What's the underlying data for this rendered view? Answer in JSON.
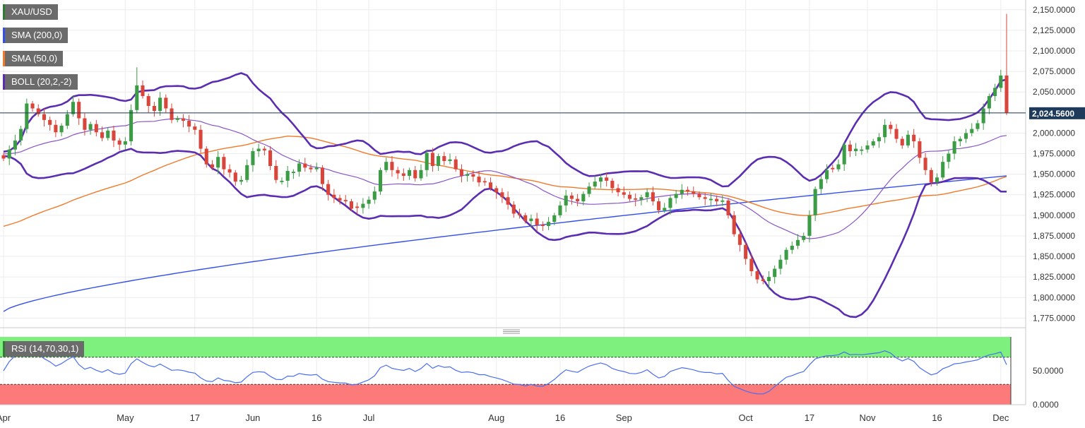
{
  "legend": {
    "symbol": "XAU/USD",
    "sma200": "SMA (200,0)",
    "sma50": "SMA (50,0)",
    "boll": "BOLL (20,2,-2)",
    "rsi": "RSI (14,70,30,1)"
  },
  "colors": {
    "up": "#3c9c46",
    "down": "#d9453a",
    "sma200": "#3550e8",
    "sma50": "#ef7a2a",
    "boll_band": "#5b2db0",
    "boll_mid": "#8a55c8",
    "rsi_line": "#4a6ef0",
    "rsi_over": "#7ef07e",
    "rsi_under": "#fc7a7a",
    "last_price_bg": "#1f3b5c",
    "legend_symbol": "#2e7d32",
    "legend_sma200": "#3550e8",
    "legend_sma50": "#ef7a2a",
    "legend_boll": "#5b2db0",
    "legend_rsi": "#2e7d32"
  },
  "last_price": "2,024.5600",
  "chart_data": [
    {
      "type": "candlestick",
      "series_name": "XAU/USD",
      "x_ticks": [
        {
          "label": "Apr",
          "i": 0
        },
        {
          "label": "May",
          "i": 21
        },
        {
          "label": "17",
          "i": 33
        },
        {
          "label": "Jun",
          "i": 43
        },
        {
          "label": "16",
          "i": 54
        },
        {
          "label": "Jul",
          "i": 63
        },
        {
          "label": "Aug",
          "i": 85
        },
        {
          "label": "16",
          "i": 96
        },
        {
          "label": "Sep",
          "i": 107
        },
        {
          "label": "Oct",
          "i": 128
        },
        {
          "label": "17",
          "i": 139
        },
        {
          "label": "Nov",
          "i": 149
        },
        {
          "label": "16",
          "i": 161
        },
        {
          "label": "Dec",
          "i": 172
        }
      ],
      "y_ticks": [
        "2,150.0000",
        "2,125.0000",
        "2,100.0000",
        "2,075.0000",
        "2,050.0000",
        "2,025.0000",
        "2,000.0000",
        "1,975.0000",
        "1,950.0000",
        "1,925.0000",
        "1,900.0000",
        "1,875.0000",
        "1,850.0000",
        "1,825.0000",
        "1,800.0000",
        "1,775.0000"
      ],
      "ylim": [
        1765,
        2155
      ],
      "close": [
        1969,
        1980,
        1991,
        2005,
        2036,
        2030,
        2023,
        2016,
        2010,
        2001,
        2009,
        2023,
        2038,
        2018,
        2004,
        2011,
        2001,
        1994,
        2003,
        1991,
        1986,
        1990,
        2028,
        2058,
        2045,
        2033,
        2027,
        2043,
        2030,
        2016,
        2018,
        2015,
        2008,
        2004,
        1981,
        1962,
        1958,
        1971,
        1956,
        1952,
        1941,
        1943,
        1961,
        1978,
        1981,
        1979,
        1960,
        1943,
        1942,
        1954,
        1953,
        1963,
        1958,
        1956,
        1958,
        1938,
        1925,
        1921,
        1918,
        1917,
        1908,
        1909,
        1914,
        1919,
        1929,
        1955,
        1965,
        1955,
        1951,
        1948,
        1955,
        1945,
        1955,
        1976,
        1960,
        1972,
        1966,
        1968,
        1956,
        1948,
        1950,
        1947,
        1940,
        1940,
        1933,
        1928,
        1922,
        1913,
        1902,
        1900,
        1893,
        1896,
        1888,
        1887,
        1892,
        1900,
        1912,
        1924,
        1920,
        1917,
        1926,
        1935,
        1941,
        1946,
        1942,
        1933,
        1928,
        1925,
        1920,
        1919,
        1922,
        1928,
        1917,
        1906,
        1909,
        1921,
        1926,
        1931,
        1929,
        1926,
        1922,
        1920,
        1920,
        1917,
        1918,
        1900,
        1877,
        1864,
        1847,
        1832,
        1822,
        1820,
        1825,
        1835,
        1846,
        1858,
        1863,
        1870,
        1875,
        1900,
        1932,
        1944,
        1955,
        1956,
        1962,
        1986,
        1978,
        1981,
        1980,
        1985,
        1990,
        1995,
        2010,
        2005,
        1993,
        1985,
        1998,
        1990,
        1970,
        1955,
        1940,
        1946,
        1965,
        1975,
        1990,
        1993,
        2000,
        2005,
        2012,
        2030,
        2045,
        2055,
        2070,
        2025
      ]
    },
    {
      "type": "line",
      "series_name": "RSI",
      "ylim": [
        0,
        100
      ],
      "y_ticks": [
        "50.0000",
        "0.0000"
      ],
      "overbought": 70,
      "oversold": 30
    }
  ]
}
